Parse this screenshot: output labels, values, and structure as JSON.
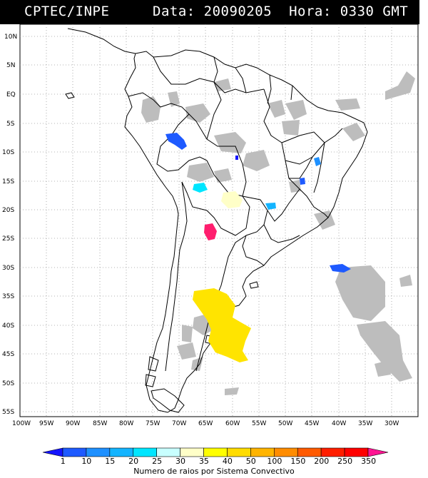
{
  "header": {
    "source": "CPTEC/INPE",
    "date_label": "Data:",
    "date": "20090205",
    "time_label": "Hora:",
    "time": "0330 GMT"
  },
  "axes": {
    "lat_labels": [
      "10N",
      "5N",
      "EQ",
      "5S",
      "10S",
      "15S",
      "20S",
      "25S",
      "30S",
      "35S",
      "40S",
      "45S",
      "50S",
      "55S"
    ],
    "lon_labels": [
      "100W",
      "95W",
      "90W",
      "85W",
      "80W",
      "75W",
      "70W",
      "65W",
      "60W",
      "55W",
      "50W",
      "45W",
      "40W",
      "35W",
      "30W"
    ]
  },
  "legend": {
    "ticks": [
      "1",
      "10",
      "15",
      "20",
      "25",
      "30",
      "35",
      "40",
      "50",
      "100",
      "150",
      "200",
      "250",
      "350"
    ],
    "title": "Numero de raios por Sistema Convectivo",
    "colors": [
      "#1414ff",
      "#1e5aff",
      "#1e90ff",
      "#14b4ff",
      "#00e6ff",
      "#c8ffff",
      "#ffffc8",
      "#ffff00",
      "#ffdc00",
      "#ffb400",
      "#ff8c00",
      "#ff5a00",
      "#ff1e00",
      "#ff0000",
      "#ff1493"
    ]
  }
}
